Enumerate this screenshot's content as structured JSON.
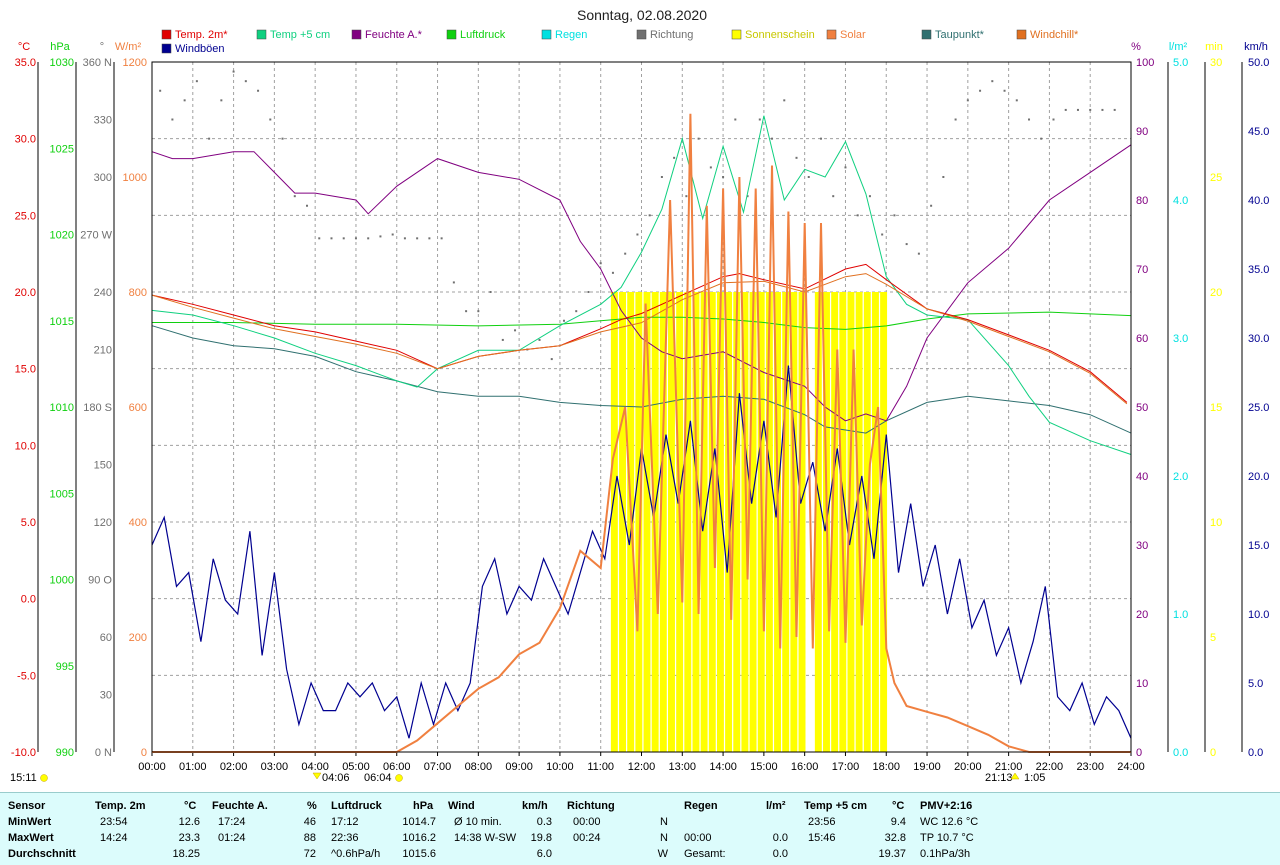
{
  "title": "Sonntag, 02.08.2020",
  "colors": {
    "temp2m": "#e00000",
    "temp5cm": "#10d080",
    "humidity": "#800080",
    "pressure": "#10d010",
    "rain": "#00e0e0",
    "direction": "#707070",
    "sunshine": "#ffff00",
    "solar": "#f08040",
    "dewpoint": "#307070",
    "windchill": "#e07020",
    "gust": "#000090",
    "grid": "#a0a0a0"
  },
  "legend": [
    {
      "label": "Temp. 2m*",
      "color": "#e00000"
    },
    {
      "label": "Temp +5 cm",
      "color": "#10d080"
    },
    {
      "label": "Feuchte A.*",
      "color": "#800080"
    },
    {
      "label": "Luftdruck",
      "color": "#10d010"
    },
    {
      "label": "Regen",
      "color": "#00e0e0"
    },
    {
      "label": "Richtung",
      "color": "#707070"
    },
    {
      "label": "Sonnenschein",
      "color": "#ffff00"
    },
    {
      "label": "Solar",
      "color": "#f08040"
    },
    {
      "label": "Taupunkt*",
      "color": "#307070"
    },
    {
      "label": "Windchill*",
      "color": "#e07020"
    },
    {
      "label": "Windböen",
      "color": "#000090"
    }
  ],
  "axes": {
    "temp": {
      "unit": "°C",
      "color": "#e00000",
      "ticks": [
        "35.0",
        "30.0",
        "25.0",
        "20.0",
        "15.0",
        "10.0",
        "5.0",
        "0.0",
        "-5.0",
        "-10.0"
      ]
    },
    "pressure": {
      "unit": "hPa",
      "color": "#10d010",
      "ticks": [
        "1030",
        "1025",
        "1020",
        "1015",
        "1010",
        "1005",
        "1000",
        "995",
        "990"
      ]
    },
    "direction": {
      "unit": "°",
      "color": "#707070",
      "ticks": [
        "360 N",
        "330",
        "300",
        "270 W",
        "240",
        "210",
        "180 S",
        "150",
        "120",
        "90 O",
        "60",
        "30",
        "0 N"
      ]
    },
    "solar": {
      "unit": "W/m²",
      "color": "#f08040",
      "ticks": [
        "1200",
        "1000",
        "800",
        "600",
        "400",
        "200",
        "0"
      ]
    },
    "humidity": {
      "unit": "%",
      "color": "#800080",
      "ticks": [
        "100",
        "90",
        "80",
        "70",
        "60",
        "50",
        "40",
        "30",
        "20",
        "10",
        "0"
      ]
    },
    "rain": {
      "unit": "l/m²",
      "color": "#00e0e0",
      "ticks": [
        "5.0",
        "4.0",
        "3.0",
        "2.0",
        "1.0",
        "0.0"
      ]
    },
    "sunshine": {
      "unit": "min",
      "color": "#ffff00",
      "ticks": [
        "30",
        "25",
        "20",
        "15",
        "10",
        "5",
        "0"
      ]
    },
    "wind": {
      "unit": "km/h",
      "color": "#000090",
      "ticks": [
        "50.0",
        "45.0",
        "40.0",
        "35.0",
        "30.0",
        "25.0",
        "20.0",
        "15.0",
        "10.0",
        "5.0",
        "0.0"
      ]
    },
    "time": [
      "00:00",
      "01:00",
      "02:00",
      "03:00",
      "04:00",
      "05:00",
      "06:00",
      "07:00",
      "08:00",
      "09:00",
      "10:00",
      "11:00",
      "12:00",
      "13:00",
      "14:00",
      "15:00",
      "16:00",
      "17:00",
      "18:00",
      "19:00",
      "20:00",
      "21:00",
      "22:00",
      "23:00",
      "24:00"
    ]
  },
  "astro": {
    "moonset": "15:11",
    "dawn": "04:06",
    "sunrise": "06:04",
    "sunset": "21:13",
    "moonrise": "1:05"
  },
  "chart_data": {
    "type": "line",
    "title": "Sonntag, 02.08.2020",
    "x_unit": "hour",
    "xlim": [
      0,
      24
    ],
    "series": [
      {
        "name": "Temp. 2m*",
        "unit": "°C",
        "x": [
          0,
          1,
          2,
          3,
          4,
          5,
          6,
          7,
          8,
          9,
          10,
          11,
          11.5,
          12,
          13,
          14,
          14.4,
          15,
          16,
          17,
          17.5,
          18,
          19,
          20,
          21,
          22,
          23,
          23.9
        ],
        "y": [
          19.8,
          19.2,
          18.5,
          17.8,
          17.4,
          16.8,
          16.2,
          15.0,
          15.8,
          16.2,
          16.5,
          17.6,
          18.2,
          18.6,
          19.8,
          21.0,
          21.2,
          20.8,
          20.2,
          21.5,
          21.8,
          20.8,
          18.9,
          18.2,
          17.2,
          16.2,
          14.8,
          12.8
        ]
      },
      {
        "name": "Temp +5 cm",
        "unit": "°C",
        "x": [
          0,
          1,
          2,
          3,
          4,
          5,
          6,
          6.5,
          7,
          8,
          9,
          10,
          11,
          11.5,
          12,
          12.5,
          13,
          13.5,
          14,
          14.5,
          15,
          15.5,
          16,
          16.5,
          17,
          17.5,
          18,
          18.5,
          19,
          20,
          21,
          21.5,
          22,
          23,
          24
        ],
        "y": [
          18.8,
          18.5,
          17.8,
          17.0,
          16.0,
          15.2,
          14.2,
          13.8,
          15.0,
          16.2,
          16.2,
          17.8,
          19.2,
          20.3,
          22.6,
          25.4,
          30.0,
          24.8,
          29.5,
          25.2,
          31.5,
          26.0,
          28.0,
          27.5,
          29.8,
          26.4,
          21.0,
          19.2,
          18.5,
          18.2,
          15.2,
          13.2,
          11.5,
          10.3,
          9.4
        ]
      },
      {
        "name": "Feuchte A.*",
        "unit": "%",
        "x": [
          0,
          0.5,
          1,
          2,
          2.5,
          3,
          3.5,
          4,
          5,
          5.3,
          6,
          7,
          8,
          9,
          10,
          10.5,
          11,
          11.5,
          12,
          12.5,
          13,
          14,
          15,
          16,
          16.5,
          17,
          17.5,
          18,
          18.5,
          19,
          20,
          21,
          22,
          23,
          24
        ],
        "y": [
          87,
          86,
          86,
          87,
          87,
          84,
          81,
          81,
          80,
          78,
          82,
          86,
          84,
          83,
          80,
          74,
          70,
          64,
          60,
          58,
          57,
          58,
          55,
          53,
          50,
          48,
          49,
          48,
          53,
          60,
          68,
          73,
          80,
          84,
          88
        ]
      },
      {
        "name": "Luftdruck",
        "unit": "hPa",
        "x": [
          0,
          2,
          4,
          6,
          8,
          10,
          11,
          12,
          13,
          14,
          15,
          16,
          17,
          18,
          19,
          20,
          22,
          24
        ],
        "y": [
          1014.9,
          1014.9,
          1014.8,
          1014.8,
          1014.7,
          1014.8,
          1015.0,
          1015.2,
          1015.2,
          1015.1,
          1014.9,
          1014.6,
          1014.5,
          1014.7,
          1015.1,
          1015.4,
          1015.5,
          1015.3
        ]
      },
      {
        "name": "Regen",
        "unit": "l/m²",
        "x": [
          0,
          24
        ],
        "y": [
          0,
          0
        ]
      },
      {
        "name": "Taupunkt*",
        "unit": "°C",
        "x": [
          0,
          1,
          2,
          3,
          4,
          5,
          6,
          7,
          8,
          9,
          10,
          11,
          12,
          13,
          14,
          15,
          16,
          16.5,
          17,
          17.5,
          18,
          19,
          20,
          21,
          22,
          23,
          24
        ],
        "y": [
          17.8,
          17.0,
          16.5,
          16.3,
          15.8,
          14.8,
          14.2,
          13.5,
          13.2,
          13.2,
          12.8,
          12.6,
          12.5,
          13.0,
          13.2,
          13.0,
          12.0,
          11.2,
          11.0,
          10.8,
          11.6,
          12.8,
          13.2,
          12.9,
          12.6,
          12.0,
          10.8
        ]
      },
      {
        "name": "Windchill*",
        "unit": "°C",
        "x": [
          0,
          1,
          2,
          3,
          4,
          5,
          6,
          7,
          8,
          9,
          10,
          11,
          12,
          13,
          14,
          15,
          16,
          17,
          17.5,
          18,
          19,
          20,
          21,
          22,
          23,
          23.9
        ],
        "y": [
          19.8,
          19.0,
          18.3,
          17.6,
          17.1,
          16.6,
          16.0,
          15.0,
          15.8,
          16.2,
          16.5,
          17.4,
          18.0,
          19.5,
          20.6,
          20.7,
          20.0,
          21.0,
          21.2,
          20.5,
          18.9,
          18.1,
          17.1,
          16.1,
          14.7,
          12.7
        ]
      },
      {
        "name": "Solar",
        "unit": "W/m²",
        "x": [
          0,
          6,
          6.5,
          7,
          7.5,
          8,
          8.5,
          9,
          9.5,
          10,
          10.5,
          11,
          11.3,
          11.6,
          11.9,
          12.1,
          12.4,
          12.7,
          13,
          13.2,
          13.4,
          13.6,
          13.8,
          14,
          14.2,
          14.4,
          14.6,
          14.8,
          15,
          15.2,
          15.4,
          15.6,
          15.8,
          16,
          16.2,
          16.4,
          16.6,
          16.8,
          17,
          17.2,
          17.4,
          17.6,
          17.8,
          18,
          18.2,
          18.5,
          19,
          19.5,
          20,
          20.5,
          21,
          21.5,
          22,
          24
        ],
        "y": [
          0,
          0,
          20,
          50,
          80,
          110,
          130,
          170,
          190,
          250,
          350,
          320,
          510,
          600,
          210,
          780,
          240,
          960,
          260,
          1110,
          240,
          950,
          320,
          980,
          230,
          1000,
          300,
          980,
          210,
          1020,
          180,
          940,
          200,
          920,
          180,
          920,
          210,
          700,
          190,
          700,
          220,
          500,
          600,
          180,
          120,
          80,
          70,
          60,
          45,
          30,
          10,
          0,
          0,
          0
        ]
      },
      {
        "name": "Windböen",
        "unit": "km/h",
        "x": [
          0,
          0.3,
          0.6,
          0.9,
          1.2,
          1.5,
          1.8,
          2.1,
          2.4,
          2.7,
          3.0,
          3.3,
          3.6,
          3.9,
          4.2,
          4.5,
          4.8,
          5.1,
          5.4,
          5.7,
          6.0,
          6.3,
          6.6,
          6.9,
          7.2,
          7.5,
          7.8,
          8.1,
          8.4,
          8.7,
          9.0,
          9.3,
          9.6,
          9.9,
          10.2,
          10.5,
          10.8,
          11.1,
          11.4,
          11.7,
          12.0,
          12.3,
          12.6,
          12.9,
          13.2,
          13.5,
          13.8,
          14.1,
          14.4,
          14.7,
          15.0,
          15.3,
          15.6,
          15.9,
          16.2,
          16.5,
          16.8,
          17.1,
          17.4,
          17.7,
          18.0,
          18.3,
          18.6,
          18.9,
          19.2,
          19.5,
          19.8,
          20.1,
          20.4,
          20.7,
          21.0,
          21.3,
          21.6,
          21.9,
          22.2,
          22.5,
          22.8,
          23.1,
          23.4,
          23.7,
          24.0
        ],
        "y": [
          15,
          17,
          12,
          13,
          8,
          14,
          11,
          10,
          16,
          7,
          13,
          6,
          2,
          5,
          3,
          3,
          5,
          4,
          5,
          3,
          4,
          1,
          5,
          2,
          5,
          3,
          5,
          12,
          14,
          10,
          12,
          11,
          14,
          12,
          10,
          13,
          16,
          14,
          20,
          15,
          22,
          17,
          23,
          18,
          24,
          16,
          22,
          13,
          26,
          18,
          24,
          17,
          28,
          18,
          21,
          16,
          22,
          15,
          20,
          14,
          23,
          13,
          18,
          12,
          15,
          10,
          14,
          9,
          11,
          7,
          9,
          5,
          8,
          12,
          4,
          3,
          5,
          2,
          4,
          3,
          1
        ]
      }
    ],
    "scatter_series": [
      {
        "name": "Richtung",
        "unit": "°",
        "x": [
          0.2,
          0.5,
          0.8,
          1.1,
          1.4,
          1.7,
          2.0,
          2.3,
          2.6,
          2.9,
          3.2,
          3.5,
          3.8,
          4.1,
          4.4,
          4.7,
          5.0,
          5.3,
          5.6,
          5.9,
          6.2,
          6.5,
          6.8,
          7.1,
          7.4,
          7.7,
          8.0,
          8.3,
          8.6,
          8.9,
          9.2,
          9.5,
          9.8,
          10.1,
          10.4,
          10.7,
          11.0,
          11.3,
          11.6,
          11.9,
          12.2,
          12.5,
          12.8,
          13.1,
          13.4,
          13.7,
          14.0,
          14.3,
          14.6,
          14.9,
          15.2,
          15.5,
          15.8,
          16.1,
          16.4,
          16.7,
          17.0,
          17.3,
          17.6,
          17.9,
          18.2,
          18.5,
          18.8,
          19.1,
          19.4,
          19.7,
          20.0,
          20.3,
          20.6,
          20.9,
          21.2,
          21.5,
          21.8,
          22.1,
          22.4,
          22.7,
          23.0,
          23.3,
          23.6
        ],
        "y": [
          345,
          330,
          340,
          350,
          320,
          340,
          355,
          350,
          345,
          330,
          320,
          290,
          285,
          268,
          268,
          268,
          268,
          268,
          269,
          270,
          268,
          268,
          268,
          268,
          245,
          230,
          230,
          240,
          215,
          220,
          210,
          215,
          205,
          225,
          230,
          240,
          255,
          250,
          260,
          270,
          280,
          300,
          310,
          290,
          320,
          305,
          300,
          330,
          290,
          330,
          320,
          340,
          310,
          300,
          320,
          290,
          305,
          280,
          290,
          270,
          280,
          265,
          260,
          285,
          300,
          330,
          340,
          345,
          350,
          345,
          340,
          330,
          320,
          330,
          335,
          335,
          335,
          335,
          335
        ]
      },
      {
        "name": "Sonnenschein",
        "unit": "min",
        "x": [
          11.25,
          11.45,
          11.65,
          11.85,
          12.05,
          12.25,
          12.45,
          12.65,
          12.85,
          13.05,
          13.25,
          13.45,
          13.65,
          13.85,
          14.05,
          14.25,
          14.45,
          14.65,
          14.85,
          15.05,
          15.25,
          15.45,
          15.65,
          15.85,
          16.25,
          16.45,
          16.65,
          16.85,
          17.05,
          17.25,
          17.45,
          17.65,
          17.85
        ],
        "y": [
          20,
          20,
          20,
          20,
          20,
          20,
          20,
          20,
          20,
          20,
          20,
          20,
          20,
          20,
          20,
          20,
          20,
          20,
          20,
          20,
          20,
          20,
          20,
          20,
          20,
          20,
          20,
          20,
          20,
          20,
          20,
          20,
          20
        ]
      }
    ]
  },
  "stats": {
    "header": {
      "sensor": "Sensor",
      "temp": "Temp. 2m",
      "temp_unit": "°C",
      "hum": "Feuchte A.",
      "hum_unit": "%",
      "press": "Luftdruck",
      "press_unit": "hPa",
      "wind": "Wind",
      "wind_unit": "km/h",
      "dir": "Richtung",
      "rain": "Regen",
      "rain_unit": "l/m²",
      "temp5": "Temp +5 cm",
      "temp5_unit": "°C",
      "pmv": "PMV+2:16"
    },
    "rows": [
      {
        "label": "MinWert",
        "temp_time": "23:54",
        "temp_val": "12.6",
        "hum_time": "17:24",
        "hum_val": "46",
        "press_time": "17:12",
        "press_val": "1014.7",
        "wind_label": "Ø 10 min.",
        "wind_val": "0.3",
        "dir_time": "00:00",
        "dir_val": "N",
        "rain_time": "",
        "rain_val": "",
        "t5_time": "23:56",
        "t5_val": "9.4",
        "pmv": "WC 12.6 °C"
      },
      {
        "label": "MaxWert",
        "temp_time": "14:24",
        "temp_val": "23.3",
        "hum_time": "01:24",
        "hum_val": "88",
        "press_time": "22:36",
        "press_val": "1016.2",
        "wind_label": "14:38   W-SW",
        "wind_val": "19.8",
        "dir_time": "00:24",
        "dir_val": "N",
        "rain_time": "00:00",
        "rain_val": "0.0",
        "t5_time": "15:46",
        "t5_val": "32.8",
        "pmv": "TP 10.7 °C"
      },
      {
        "label": "Durchschnitt",
        "temp_time": "",
        "temp_val": "18.25",
        "hum_time": "",
        "hum_val": "72",
        "press_time": "^0.6hPa/h",
        "press_val": "1015.6",
        "wind_label": "",
        "wind_val": "6.0",
        "dir_time": "",
        "dir_val": "W",
        "rain_time": "Gesamt:",
        "rain_val": "0.0",
        "t5_time": "",
        "t5_val": "19.37",
        "pmv": "0.1hPa/3h"
      }
    ]
  }
}
